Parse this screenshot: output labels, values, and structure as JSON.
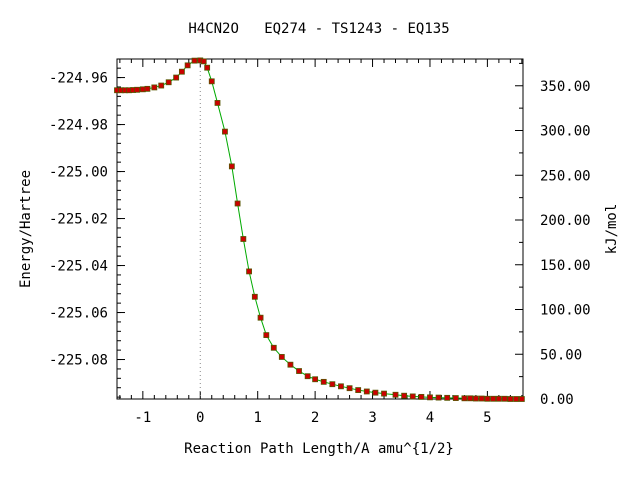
{
  "chart_data": {
    "type": "line",
    "title": "H4CN2O   EQ274 - TS1243 - EQ135",
    "xlabel": "Reaction Path Length/A amu^{1/2}",
    "ylabel": "Energy/Hartree",
    "y2label": "kJ/mol",
    "xlim": [
      -1.45,
      5.62
    ],
    "ylim": [
      -225.0968,
      -224.9521
    ],
    "x_ticks": [
      -1,
      0,
      1,
      2,
      3,
      4,
      5
    ],
    "y_ticks": [
      -224.96,
      -224.98,
      -225.0,
      -225.02,
      -225.04,
      -225.06,
      -225.08
    ],
    "y_tick_labels": [
      "-224.96",
      "-224.98",
      "-225.00",
      "-225.02",
      "-225.04",
      "-225.06",
      "-225.08"
    ],
    "y2_ticks": [
      0,
      50,
      100,
      150,
      200,
      250,
      300,
      350
    ],
    "y2_tick_labels": [
      "0.00",
      "50.00",
      "100.00",
      "150.00",
      "200.00",
      "250.00",
      "300.00",
      "350.00"
    ],
    "y2_ref_hartree": -225.0968,
    "hartree_to_kj": 2625.5,
    "ts_x": 0,
    "line_color": "#00aa00",
    "marker_color": "#cc0000",
    "marker_edge": "#555500",
    "series": [
      {
        "x": [
          -1.45,
          -1.38,
          -1.31,
          -1.24,
          -1.17,
          -1.1,
          -1.0,
          -0.92,
          -0.8,
          -0.68,
          -0.55,
          -0.42,
          -0.32,
          -0.22,
          -0.1,
          0.0,
          0.06,
          0.12,
          0.2,
          0.3,
          0.43,
          0.55,
          0.65,
          0.75,
          0.85,
          0.95,
          1.05,
          1.15,
          1.28,
          1.42,
          1.57,
          1.72,
          1.87,
          2.0,
          2.15,
          2.3,
          2.45,
          2.6,
          2.75,
          2.9,
          3.05,
          3.2,
          3.4,
          3.55,
          3.7,
          3.85,
          4.0,
          4.15,
          4.3,
          4.45,
          4.6,
          4.7,
          4.8,
          4.9,
          5.0,
          5.1,
          5.2,
          5.3,
          5.4,
          5.5,
          5.6
        ],
        "y": [
          -224.9654,
          -224.9654,
          -224.9654,
          -224.9654,
          -224.9653,
          -224.9652,
          -224.965,
          -224.9648,
          -224.9642,
          -224.9634,
          -224.962,
          -224.96,
          -224.9575,
          -224.9548,
          -224.9528,
          -224.9527,
          -224.9531,
          -224.9558,
          -224.9616,
          -224.9708,
          -224.983,
          -224.9978,
          -225.0136,
          -225.0287,
          -225.0425,
          -225.0533,
          -225.0622,
          -225.0696,
          -225.075,
          -225.0789,
          -225.0822,
          -225.0849,
          -225.0871,
          -225.0884,
          -225.0895,
          -225.0905,
          -225.0914,
          -225.0922,
          -225.093,
          -225.0936,
          -225.0941,
          -225.0945,
          -225.095,
          -225.0954,
          -225.0957,
          -225.0959,
          -225.0961,
          -225.0962,
          -225.0963,
          -225.0964,
          -225.0965,
          -225.0965,
          -225.0966,
          -225.0966,
          -225.0967,
          -225.0967,
          -225.0967,
          -225.0967,
          -225.0968,
          -225.0968,
          -225.0968
        ]
      }
    ]
  }
}
